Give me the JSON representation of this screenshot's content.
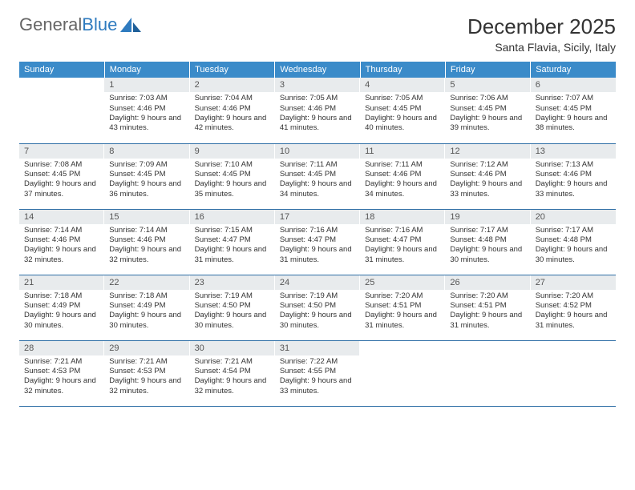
{
  "brand": {
    "part1": "General",
    "part2": "Blue"
  },
  "title": "December 2025",
  "location": "Santa Flavia, Sicily, Italy",
  "colors": {
    "header_bg": "#3b8bc9",
    "header_text": "#ffffff",
    "daynum_bg": "#e8ebed",
    "row_divider": "#2f6fa6",
    "logo_gray": "#666666",
    "logo_blue": "#2f7bbf"
  },
  "weekdays": [
    "Sunday",
    "Monday",
    "Tuesday",
    "Wednesday",
    "Thursday",
    "Friday",
    "Saturday"
  ],
  "weeks": [
    [
      {
        "n": "",
        "sr": "",
        "ss": "",
        "dl": ""
      },
      {
        "n": "1",
        "sr": "7:03 AM",
        "ss": "4:46 PM",
        "dl": "9 hours and 43 minutes."
      },
      {
        "n": "2",
        "sr": "7:04 AM",
        "ss": "4:46 PM",
        "dl": "9 hours and 42 minutes."
      },
      {
        "n": "3",
        "sr": "7:05 AM",
        "ss": "4:46 PM",
        "dl": "9 hours and 41 minutes."
      },
      {
        "n": "4",
        "sr": "7:05 AM",
        "ss": "4:45 PM",
        "dl": "9 hours and 40 minutes."
      },
      {
        "n": "5",
        "sr": "7:06 AM",
        "ss": "4:45 PM",
        "dl": "9 hours and 39 minutes."
      },
      {
        "n": "6",
        "sr": "7:07 AM",
        "ss": "4:45 PM",
        "dl": "9 hours and 38 minutes."
      }
    ],
    [
      {
        "n": "7",
        "sr": "7:08 AM",
        "ss": "4:45 PM",
        "dl": "9 hours and 37 minutes."
      },
      {
        "n": "8",
        "sr": "7:09 AM",
        "ss": "4:45 PM",
        "dl": "9 hours and 36 minutes."
      },
      {
        "n": "9",
        "sr": "7:10 AM",
        "ss": "4:45 PM",
        "dl": "9 hours and 35 minutes."
      },
      {
        "n": "10",
        "sr": "7:11 AM",
        "ss": "4:45 PM",
        "dl": "9 hours and 34 minutes."
      },
      {
        "n": "11",
        "sr": "7:11 AM",
        "ss": "4:46 PM",
        "dl": "9 hours and 34 minutes."
      },
      {
        "n": "12",
        "sr": "7:12 AM",
        "ss": "4:46 PM",
        "dl": "9 hours and 33 minutes."
      },
      {
        "n": "13",
        "sr": "7:13 AM",
        "ss": "4:46 PM",
        "dl": "9 hours and 33 minutes."
      }
    ],
    [
      {
        "n": "14",
        "sr": "7:14 AM",
        "ss": "4:46 PM",
        "dl": "9 hours and 32 minutes."
      },
      {
        "n": "15",
        "sr": "7:14 AM",
        "ss": "4:46 PM",
        "dl": "9 hours and 32 minutes."
      },
      {
        "n": "16",
        "sr": "7:15 AM",
        "ss": "4:47 PM",
        "dl": "9 hours and 31 minutes."
      },
      {
        "n": "17",
        "sr": "7:16 AM",
        "ss": "4:47 PM",
        "dl": "9 hours and 31 minutes."
      },
      {
        "n": "18",
        "sr": "7:16 AM",
        "ss": "4:47 PM",
        "dl": "9 hours and 31 minutes."
      },
      {
        "n": "19",
        "sr": "7:17 AM",
        "ss": "4:48 PM",
        "dl": "9 hours and 30 minutes."
      },
      {
        "n": "20",
        "sr": "7:17 AM",
        "ss": "4:48 PM",
        "dl": "9 hours and 30 minutes."
      }
    ],
    [
      {
        "n": "21",
        "sr": "7:18 AM",
        "ss": "4:49 PM",
        "dl": "9 hours and 30 minutes."
      },
      {
        "n": "22",
        "sr": "7:18 AM",
        "ss": "4:49 PM",
        "dl": "9 hours and 30 minutes."
      },
      {
        "n": "23",
        "sr": "7:19 AM",
        "ss": "4:50 PM",
        "dl": "9 hours and 30 minutes."
      },
      {
        "n": "24",
        "sr": "7:19 AM",
        "ss": "4:50 PM",
        "dl": "9 hours and 30 minutes."
      },
      {
        "n": "25",
        "sr": "7:20 AM",
        "ss": "4:51 PM",
        "dl": "9 hours and 31 minutes."
      },
      {
        "n": "26",
        "sr": "7:20 AM",
        "ss": "4:51 PM",
        "dl": "9 hours and 31 minutes."
      },
      {
        "n": "27",
        "sr": "7:20 AM",
        "ss": "4:52 PM",
        "dl": "9 hours and 31 minutes."
      }
    ],
    [
      {
        "n": "28",
        "sr": "7:21 AM",
        "ss": "4:53 PM",
        "dl": "9 hours and 32 minutes."
      },
      {
        "n": "29",
        "sr": "7:21 AM",
        "ss": "4:53 PM",
        "dl": "9 hours and 32 minutes."
      },
      {
        "n": "30",
        "sr": "7:21 AM",
        "ss": "4:54 PM",
        "dl": "9 hours and 32 minutes."
      },
      {
        "n": "31",
        "sr": "7:22 AM",
        "ss": "4:55 PM",
        "dl": "9 hours and 33 minutes."
      },
      {
        "n": "",
        "sr": "",
        "ss": "",
        "dl": ""
      },
      {
        "n": "",
        "sr": "",
        "ss": "",
        "dl": ""
      },
      {
        "n": "",
        "sr": "",
        "ss": "",
        "dl": ""
      }
    ]
  ],
  "labels": {
    "sunrise": "Sunrise:",
    "sunset": "Sunset:",
    "daylight": "Daylight:"
  }
}
